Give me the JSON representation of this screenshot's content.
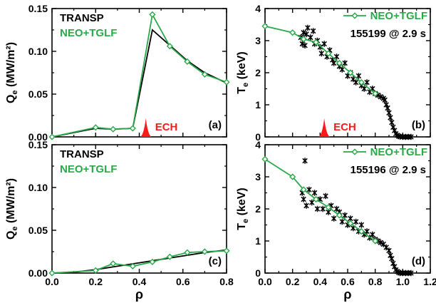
{
  "figure": {
    "colors": {
      "tgl": "#2aa84a",
      "transp": "#000000",
      "ech": "#ff1a1a",
      "exp": "#000000"
    }
  },
  "chart_data": [
    {
      "id": "a",
      "type": "line",
      "panel_label": "(a)",
      "xlim": [
        0,
        0.8
      ],
      "ylim": [
        0,
        0.15
      ],
      "xticks": [
        "0.0",
        "0.2",
        "0.4",
        "0.6",
        "0.8"
      ],
      "show_xticklabels": false,
      "yticks": [
        "0.00",
        "0.05",
        "0.10",
        "0.15"
      ],
      "ylabel_main": "Q",
      "ylabel_sub": "e",
      "ylabel_units": " (MW/m²)",
      "xlabel": "",
      "legend": [
        {
          "text": "TRANSP",
          "color": "#000000"
        },
        {
          "text": "NEO+TGLF",
          "color": "#2aa84a"
        }
      ],
      "ech": {
        "label": "ECH",
        "center": 0.43
      },
      "series": [
        {
          "name": "TRANSP",
          "x": [
            0,
            0.1,
            0.2,
            0.28,
            0.37,
            0.46,
            0.54,
            0.62,
            0.7,
            0.8
          ],
          "y": [
            0,
            0.005,
            0.01,
            0.009,
            0.01,
            0.125,
            0.107,
            0.089,
            0.075,
            0.063
          ]
        },
        {
          "name": "NEO+TGLF",
          "x": [
            0,
            0.2,
            0.28,
            0.37,
            0.46,
            0.54,
            0.62,
            0.7,
            0.8
          ],
          "y": [
            0,
            0.011,
            0.009,
            0.01,
            0.143,
            0.106,
            0.088,
            0.073,
            0.064
          ]
        }
      ]
    },
    {
      "id": "b",
      "type": "line",
      "panel_label": "(b)",
      "xlim": [
        0,
        1.2
      ],
      "ylim": [
        0,
        4
      ],
      "xticks": [
        "0.0",
        "0.2",
        "0.4",
        "0.6",
        "0.8",
        "1.0",
        "1.2"
      ],
      "show_xticklabels": false,
      "yticks": [
        "0",
        "1",
        "2",
        "3",
        "4"
      ],
      "ylabel_main": "T",
      "ylabel_sub": "e",
      "ylabel_units": " (keV)",
      "xlabel": "",
      "legend": [
        {
          "text": "NEO+TGLF",
          "color": "#2aa84a"
        }
      ],
      "shot": "155199 @ 2.9 s",
      "ech": {
        "label": "ECH",
        "center": 0.43
      },
      "model": {
        "name": "NEO+TGLF",
        "x": [
          0,
          0.2,
          0.28,
          0.37,
          0.46,
          0.54,
          0.62,
          0.7,
          0.8
        ],
        "y": [
          3.45,
          3.25,
          3.05,
          2.95,
          2.6,
          2.3,
          2.0,
          1.7,
          1.35
        ]
      },
      "experiment": {
        "x": [
          0.26,
          0.27,
          0.28,
          0.29,
          0.3,
          0.31,
          0.33,
          0.35,
          0.36,
          0.38,
          0.4,
          0.41,
          0.43,
          0.45,
          0.47,
          0.49,
          0.5,
          0.52,
          0.54,
          0.56,
          0.58,
          0.6,
          0.62,
          0.64,
          0.66,
          0.68,
          0.7,
          0.72,
          0.74,
          0.76,
          0.78,
          0.8,
          0.82,
          0.84,
          0.86,
          0.87,
          0.88,
          0.89,
          0.9,
          0.91,
          0.92,
          0.93,
          0.94,
          0.95,
          0.96,
          0.97,
          0.98,
          1.0,
          1.02,
          1.04,
          1.06
        ],
        "y": [
          3.1,
          2.9,
          3.25,
          2.85,
          3.2,
          3.4,
          3.1,
          3.3,
          2.9,
          3.0,
          2.8,
          2.6,
          2.9,
          2.5,
          2.7,
          2.4,
          2.3,
          2.5,
          2.2,
          2.1,
          2.3,
          1.9,
          2.0,
          1.8,
          1.7,
          1.9,
          1.6,
          1.5,
          1.7,
          1.4,
          1.5,
          1.35,
          1.3,
          1.25,
          1.2,
          1.15,
          1.0,
          0.9,
          0.75,
          0.6,
          0.45,
          0.3,
          0.2,
          0.1,
          0.05,
          0.02,
          0.01,
          0.0,
          0.0,
          0.0,
          0.0
        ]
      }
    },
    {
      "id": "c",
      "type": "line",
      "panel_label": "(c)",
      "xlim": [
        0,
        0.8
      ],
      "ylim": [
        0,
        0.15
      ],
      "xticks": [
        "0.0",
        "0.2",
        "0.4",
        "0.6",
        "0.8"
      ],
      "show_xticklabels": true,
      "yticks": [
        "0.00",
        "0.05",
        "0.10",
        "0.15"
      ],
      "ylabel_main": "Q",
      "ylabel_sub": "e",
      "ylabel_units": " (MW/m²)",
      "xlabel": "ρ",
      "legend": [
        {
          "text": "TRANSP",
          "color": "#000000"
        },
        {
          "text": "NEO+TGLF",
          "color": "#2aa84a"
        }
      ],
      "series": [
        {
          "name": "TRANSP",
          "x": [
            0,
            0.1,
            0.2,
            0.3,
            0.4,
            0.5,
            0.6,
            0.7,
            0.8
          ],
          "y": [
            0,
            0.001,
            0.004,
            0.008,
            0.012,
            0.016,
            0.02,
            0.024,
            0.027
          ]
        },
        {
          "name": "NEO+TGLF",
          "x": [
            0,
            0.2,
            0.28,
            0.37,
            0.46,
            0.54,
            0.62,
            0.7,
            0.8
          ],
          "y": [
            0,
            0.003,
            0.011,
            0.008,
            0.013,
            0.019,
            0.024,
            0.025,
            0.026
          ]
        }
      ]
    },
    {
      "id": "d",
      "type": "line",
      "panel_label": "(d)",
      "xlim": [
        0,
        1.2
      ],
      "ylim": [
        0,
        4
      ],
      "xticks": [
        "0.0",
        "0.2",
        "0.4",
        "0.6",
        "0.8",
        "1.0",
        "1.2"
      ],
      "show_xticklabels": true,
      "yticks": [
        "0",
        "1",
        "2",
        "3",
        "4"
      ],
      "ylabel_main": "T",
      "ylabel_sub": "e",
      "ylabel_units": " (keV)",
      "xlabel": "ρ",
      "legend": [
        {
          "text": "NEO+TGLF",
          "color": "#2aa84a"
        }
      ],
      "shot": "155196 @ 2.9 s",
      "model": {
        "name": "NEO+TGLF",
        "x": [
          0,
          0.2,
          0.28,
          0.37,
          0.46,
          0.54,
          0.62,
          0.7,
          0.8
        ],
        "y": [
          3.55,
          3.0,
          2.6,
          2.3,
          2.05,
          1.8,
          1.55,
          1.3,
          1.0
        ]
      },
      "experiment": {
        "x": [
          0.27,
          0.28,
          0.29,
          0.3,
          0.32,
          0.34,
          0.36,
          0.38,
          0.4,
          0.42,
          0.44,
          0.46,
          0.48,
          0.5,
          0.52,
          0.54,
          0.56,
          0.58,
          0.6,
          0.62,
          0.64,
          0.66,
          0.68,
          0.7,
          0.72,
          0.74,
          0.76,
          0.78,
          0.8,
          0.82,
          0.84,
          0.86,
          0.88,
          0.9,
          0.91,
          0.92,
          0.93,
          0.94,
          0.95,
          0.96,
          0.97,
          0.98,
          1.0,
          1.02,
          1.04,
          1.06
        ],
        "y": [
          2.5,
          2.3,
          3.5,
          2.1,
          2.6,
          2.2,
          2.5,
          2.0,
          2.3,
          2.0,
          2.4,
          1.9,
          2.1,
          1.7,
          2.0,
          1.9,
          1.6,
          1.8,
          1.5,
          1.7,
          1.4,
          1.6,
          1.3,
          1.5,
          1.2,
          1.3,
          1.1,
          1.2,
          1.05,
          1.0,
          0.95,
          0.9,
          0.8,
          0.7,
          0.55,
          0.45,
          0.3,
          0.2,
          0.1,
          0.05,
          0.02,
          0.0,
          0.0,
          0.0,
          0.0,
          0.0
        ]
      }
    }
  ]
}
